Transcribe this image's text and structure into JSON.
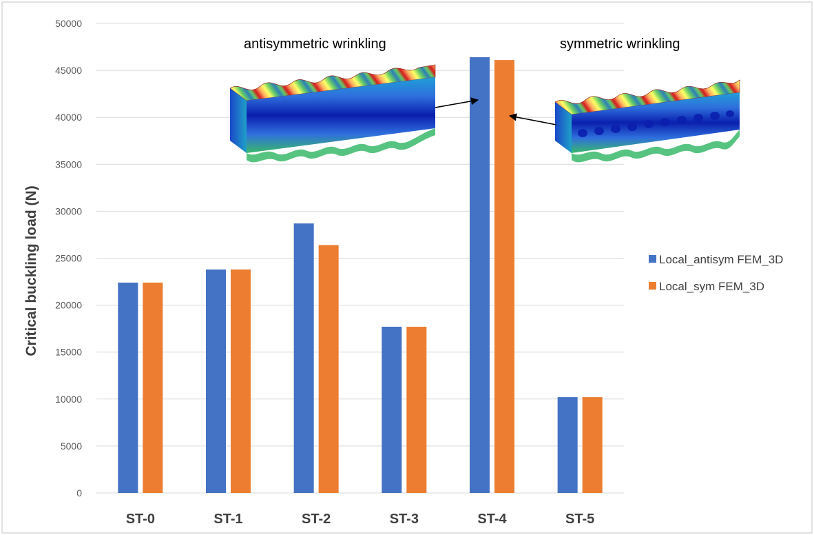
{
  "colors": {
    "series_0": "#4472C4",
    "series_1": "#ED7D31",
    "grid": "#D9D9D9",
    "border": "#D9D9D9"
  },
  "chart_data": {
    "type": "bar",
    "categories": [
      "ST-0",
      "ST-1",
      "ST-2",
      "ST-3",
      "ST-4",
      "ST-5"
    ],
    "series": [
      {
        "name": "Local_antisym FEM_3D",
        "values": [
          22400,
          23800,
          28700,
          17700,
          46400,
          10200
        ]
      },
      {
        "name": "Local_sym FEM_3D",
        "values": [
          22400,
          23800,
          26400,
          17700,
          46100,
          10200
        ]
      }
    ],
    "title": "",
    "xlabel": "",
    "ylabel": "Critical buckling load (N)",
    "ylim": [
      0,
      50000
    ],
    "yticks": [
      0,
      5000,
      10000,
      15000,
      20000,
      25000,
      30000,
      35000,
      40000,
      45000,
      50000
    ],
    "grid": true,
    "legend": "right",
    "annotations": [
      {
        "text": "antisymmetric wrinkling",
        "points_to": "ST-4 Local_antisym FEM_3D"
      },
      {
        "text": "symmetric wrinkling",
        "points_to": "ST-4 Local_sym FEM_3D"
      }
    ],
    "insets": [
      {
        "icon": "antisymmetric-wrinkling-contour-image"
      },
      {
        "icon": "symmetric-wrinkling-contour-image"
      }
    ]
  }
}
